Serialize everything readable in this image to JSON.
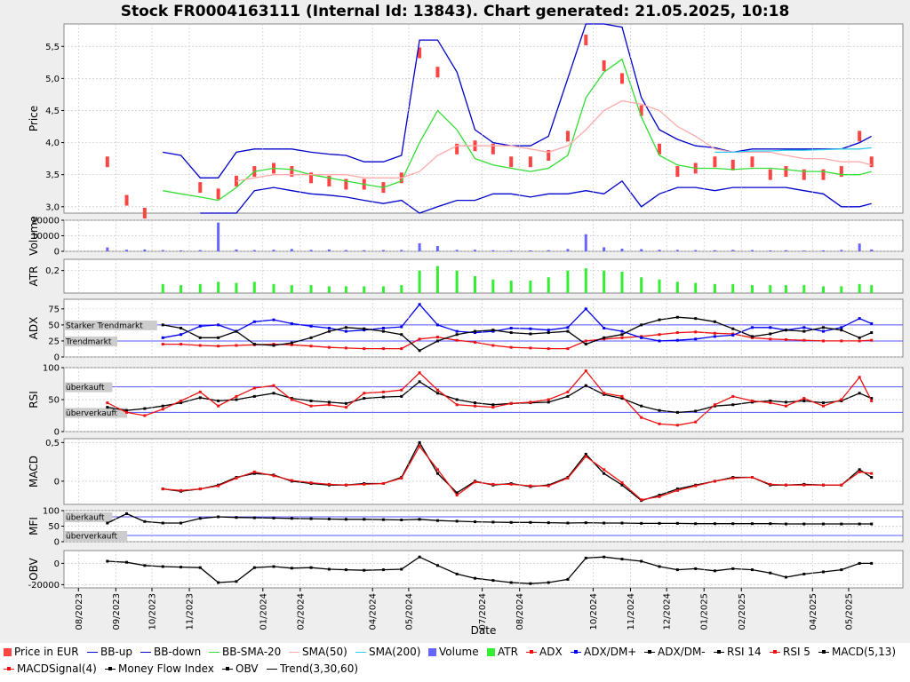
{
  "title": "Stock FR0004163111 (Internal Id: 13843). Chart generated: 21.05.2025, 10:18",
  "xlabel": "Date",
  "xticks": [
    "08/2023",
    "09/2023",
    "10/2023",
    "11/2023",
    "01/2024",
    "02/2024",
    "04/2024",
    "05/2024",
    "07/2024",
    "08/2024",
    "10/2024",
    "11/2024",
    "12/2024",
    "01/2025",
    "02/2025",
    "04/2025",
    "05/2025"
  ],
  "colors": {
    "price": "#ff4444",
    "bb_up": "#0000cc",
    "bb_down": "#0000cc",
    "bb_sma": "#33dd33",
    "sma50": "#ffaaaa",
    "sma200": "#33ccee",
    "volume": "#6666ff",
    "atr": "#33ee33",
    "adx": "#ee1111",
    "dmplus": "#0000ee",
    "dmminus": "#000000",
    "rsi14": "#000000",
    "rsi5": "#ee1111",
    "macd": "#000000",
    "macdsignal": "#ee1111",
    "mfi": "#000000",
    "obv": "#000000",
    "zone_line": "#5555ff",
    "zone_label_bg": "#cccccc"
  },
  "panels": [
    {
      "id": "price",
      "ylabel": "Price",
      "yticks": [
        "3,0",
        "3,5",
        "4,0",
        "4,5",
        "5,0",
        "5,5"
      ],
      "ylim": [
        2.9,
        5.85
      ]
    },
    {
      "id": "volume",
      "ylabel": "Volume",
      "yticks": [
        "0",
        "10000",
        "20000"
      ],
      "ylim": [
        0,
        20000
      ]
    },
    {
      "id": "atr",
      "ylabel": "ATR",
      "yticks": [
        "0,2"
      ],
      "ylim": [
        0,
        0.3
      ]
    },
    {
      "id": "adx",
      "ylabel": "ADX",
      "yticks": [
        "0",
        "25",
        "50",
        "75"
      ],
      "ylim": [
        0,
        90
      ],
      "zones": [
        {
          "label": "Starker Trendmarkt",
          "value": 50
        },
        {
          "label": "Trendmarkt",
          "value": 25
        }
      ]
    },
    {
      "id": "rsi",
      "ylabel": "RSI",
      "yticks": [
        "0",
        "50",
        "100"
      ],
      "ylim": [
        0,
        100
      ],
      "zones": [
        {
          "label": "überkauft",
          "value": 70
        },
        {
          "label": "überverkauft",
          "value": 30
        }
      ]
    },
    {
      "id": "macd",
      "ylabel": "MACD",
      "yticks": [
        "0",
        "0,5"
      ],
      "ylim": [
        -0.3,
        0.55
      ]
    },
    {
      "id": "mfi",
      "ylabel": "MFI",
      "yticks": [
        "0",
        "50",
        "100"
      ],
      "ylim": [
        0,
        100
      ],
      "zones": [
        {
          "label": "überkauft",
          "value": 80
        },
        {
          "label": "überverkauft",
          "value": 20
        }
      ]
    },
    {
      "id": "obv",
      "ylabel": "OBV",
      "yticks": [
        "0",
        "-20000"
      ],
      "ylim": [
        -23000,
        12000
      ]
    }
  ],
  "legend": [
    {
      "label": "Price in EUR",
      "swatch": "box",
      "color": "#ff4444"
    },
    {
      "label": "BB-up",
      "swatch": "line",
      "color": "#0000cc"
    },
    {
      "label": "BB-down",
      "swatch": "line",
      "color": "#0000cc"
    },
    {
      "label": "BB-SMA-20",
      "swatch": "line",
      "color": "#33dd33"
    },
    {
      "label": "SMA(50)",
      "swatch": "line",
      "color": "#ffaaaa"
    },
    {
      "label": "SMA(200)",
      "swatch": "line",
      "color": "#33ccee"
    },
    {
      "label": "Volume",
      "swatch": "box",
      "color": "#6666ff"
    },
    {
      "label": "ATR",
      "swatch": "box",
      "color": "#33ee33"
    },
    {
      "label": "ADX",
      "swatch": "marked",
      "color": "#ee1111"
    },
    {
      "label": "ADX/DM+",
      "swatch": "marked",
      "color": "#0000ee"
    },
    {
      "label": "ADX/DM-",
      "swatch": "marked",
      "color": "#000000"
    },
    {
      "label": "RSI 14",
      "swatch": "marked",
      "color": "#000000"
    },
    {
      "label": "RSI 5",
      "swatch": "marked",
      "color": "#ee1111"
    },
    {
      "label": "MACD(5,13)",
      "swatch": "marked",
      "color": "#000000"
    },
    {
      "label": "MACDSignal(4)",
      "swatch": "marked",
      "color": "#ee1111"
    },
    {
      "label": "Money Flow Index",
      "swatch": "marked",
      "color": "#000000"
    },
    {
      "label": "OBV",
      "swatch": "marked",
      "color": "#000000"
    },
    {
      "label": "Trend(3,30,60)",
      "swatch": "line",
      "color": "#000000"
    }
  ],
  "chart_data": {
    "type": "line",
    "title": "Stock FR0004163111 (Internal Id: 13843). Chart generated: 21.05.2025, 10:18",
    "xlabel": "Date",
    "x": [
      "2023-08-01",
      "2023-08-25",
      "2023-09-10",
      "2023-09-25",
      "2023-10-10",
      "2023-10-25",
      "2023-11-10",
      "2023-11-25",
      "2023-12-10",
      "2023-12-25",
      "2024-01-10",
      "2024-01-25",
      "2024-02-10",
      "2024-02-25",
      "2024-03-10",
      "2024-03-25",
      "2024-04-10",
      "2024-04-25",
      "2024-05-10",
      "2024-05-25",
      "2024-06-10",
      "2024-06-25",
      "2024-07-10",
      "2024-07-25",
      "2024-08-10",
      "2024-08-25",
      "2024-09-10",
      "2024-09-25",
      "2024-10-10",
      "2024-10-25",
      "2024-11-10",
      "2024-11-25",
      "2024-12-10",
      "2024-12-25",
      "2025-01-10",
      "2025-01-25",
      "2025-02-10",
      "2025-02-25",
      "2025-03-10",
      "2025-03-25",
      "2025-04-10",
      "2025-04-25",
      "2025-05-10",
      "2025-05-20"
    ],
    "series": [
      {
        "name": "Price in EUR",
        "panel": "price",
        "values": [
          null,
          3.7,
          3.1,
          2.9,
          null,
          null,
          3.3,
          3.2,
          3.4,
          3.55,
          3.6,
          3.55,
          3.45,
          3.4,
          3.35,
          3.35,
          3.3,
          3.45,
          5.4,
          5.1,
          3.9,
          3.95,
          3.9,
          3.7,
          3.7,
          3.8,
          4.1,
          5.6,
          5.2,
          5.0,
          4.5,
          3.9,
          3.55,
          3.6,
          3.7,
          3.65,
          3.7,
          3.5,
          3.55,
          3.5,
          3.5,
          3.55,
          4.1,
          3.7
        ]
      },
      {
        "name": "BB-up",
        "panel": "price",
        "values": [
          null,
          null,
          null,
          null,
          3.85,
          3.8,
          3.45,
          3.45,
          3.85,
          3.9,
          3.9,
          3.9,
          3.85,
          3.82,
          3.8,
          3.7,
          3.7,
          3.8,
          5.6,
          5.6,
          5.1,
          4.2,
          4.0,
          3.95,
          3.95,
          4.1,
          5.0,
          5.85,
          5.9,
          5.8,
          4.7,
          4.2,
          4.05,
          3.95,
          3.92,
          3.85,
          3.9,
          3.9,
          3.9,
          3.9,
          3.9,
          3.9,
          4.0,
          4.1
        ]
      },
      {
        "name": "BB-down",
        "panel": "price",
        "values": [
          null,
          null,
          null,
          null,
          null,
          null,
          2.8,
          2.8,
          2.8,
          3.25,
          3.3,
          3.25,
          3.2,
          3.18,
          3.15,
          3.1,
          3.05,
          3.1,
          2.8,
          3.0,
          3.1,
          3.1,
          3.2,
          3.2,
          3.15,
          3.2,
          3.2,
          3.25,
          3.2,
          3.4,
          3.0,
          3.2,
          3.3,
          3.3,
          3.25,
          3.3,
          3.3,
          3.3,
          3.3,
          3.25,
          3.2,
          3.0,
          3.0,
          3.05
        ]
      },
      {
        "name": "BB-SMA-20",
        "panel": "price",
        "values": [
          null,
          null,
          null,
          null,
          3.25,
          3.2,
          3.15,
          3.1,
          3.3,
          3.55,
          3.6,
          3.58,
          3.5,
          3.45,
          3.4,
          3.35,
          3.3,
          3.4,
          4.0,
          4.5,
          4.2,
          3.75,
          3.65,
          3.6,
          3.55,
          3.6,
          3.8,
          4.7,
          5.1,
          5.3,
          4.4,
          3.8,
          3.65,
          3.6,
          3.6,
          3.58,
          3.6,
          3.6,
          3.58,
          3.55,
          3.55,
          3.5,
          3.5,
          3.55
        ]
      },
      {
        "name": "SMA(50)",
        "panel": "price",
        "values": [
          null,
          null,
          null,
          null,
          null,
          null,
          null,
          null,
          3.4,
          3.45,
          3.5,
          3.5,
          3.5,
          3.5,
          3.5,
          3.45,
          3.45,
          3.45,
          3.55,
          3.8,
          3.95,
          3.95,
          3.95,
          3.95,
          3.9,
          3.85,
          3.95,
          4.2,
          4.5,
          4.65,
          4.6,
          4.5,
          4.25,
          4.1,
          3.9,
          3.85,
          3.85,
          3.85,
          3.8,
          3.75,
          3.75,
          3.7,
          3.7,
          3.65
        ]
      },
      {
        "name": "SMA(200)",
        "panel": "price",
        "values": [
          null,
          null,
          null,
          null,
          null,
          null,
          null,
          null,
          null,
          null,
          null,
          null,
          null,
          null,
          null,
          null,
          null,
          null,
          null,
          null,
          null,
          null,
          null,
          null,
          null,
          null,
          null,
          null,
          null,
          null,
          null,
          null,
          null,
          null,
          3.85,
          3.85,
          3.87,
          3.87,
          3.88,
          3.88,
          3.89,
          3.9,
          3.9,
          3.92
        ]
      },
      {
        "name": "Volume",
        "panel": "volume",
        "values": [
          0,
          2500,
          1000,
          1200,
          800,
          600,
          800,
          18500,
          1200,
          800,
          1000,
          1500,
          900,
          1200,
          800,
          700,
          800,
          900,
          5200,
          3400,
          900,
          1000,
          700,
          500,
          600,
          700,
          1500,
          11000,
          2600,
          1700,
          1400,
          1000,
          900,
          800,
          700,
          900,
          800,
          600,
          700,
          500,
          600,
          900,
          5000,
          1200
        ]
      },
      {
        "name": "ATR",
        "panel": "atr",
        "values": [
          null,
          null,
          null,
          null,
          0.08,
          0.07,
          0.08,
          0.1,
          0.09,
          0.1,
          0.08,
          0.07,
          0.07,
          0.06,
          0.06,
          0.06,
          0.06,
          0.07,
          0.2,
          0.24,
          0.2,
          0.15,
          0.12,
          0.11,
          0.11,
          0.14,
          0.2,
          0.22,
          0.2,
          0.19,
          0.14,
          0.12,
          0.1,
          0.09,
          0.08,
          0.08,
          0.07,
          0.07,
          0.07,
          0.07,
          0.06,
          0.06,
          0.08,
          0.07
        ]
      },
      {
        "name": "ADX",
        "panel": "adx",
        "values": [
          null,
          null,
          null,
          null,
          20,
          20,
          18,
          17,
          18,
          19,
          20,
          19,
          17,
          15,
          14,
          13,
          13,
          13,
          28,
          31,
          26,
          23,
          18,
          15,
          14,
          13,
          13,
          25,
          28,
          30,
          32,
          35,
          38,
          39,
          37,
          36,
          30,
          28,
          27,
          26,
          25,
          25,
          25,
          26
        ]
      },
      {
        "name": "ADX/DM+",
        "panel": "adx",
        "values": [
          null,
          null,
          null,
          null,
          30,
          35,
          48,
          50,
          40,
          55,
          58,
          52,
          48,
          45,
          40,
          42,
          45,
          47,
          82,
          50,
          40,
          38,
          40,
          45,
          44,
          42,
          46,
          75,
          45,
          40,
          30,
          25,
          26,
          28,
          32,
          34,
          46,
          46,
          42,
          46,
          40,
          46,
          60,
          52
        ]
      },
      {
        "name": "ADX/DM-",
        "panel": "adx",
        "values": [
          null,
          null,
          null,
          null,
          50,
          45,
          30,
          30,
          40,
          20,
          18,
          22,
          30,
          40,
          46,
          44,
          40,
          35,
          10,
          25,
          35,
          40,
          42,
          38,
          36,
          38,
          40,
          20,
          30,
          35,
          50,
          58,
          62,
          60,
          55,
          44,
          32,
          36,
          42,
          40,
          46,
          42,
          30,
          38
        ]
      },
      {
        "name": "RSI 14",
        "panel": "rsi",
        "values": [
          null,
          38,
          33,
          36,
          40,
          45,
          53,
          48,
          50,
          55,
          60,
          52,
          48,
          46,
          44,
          52,
          54,
          55,
          78,
          60,
          50,
          45,
          42,
          44,
          45,
          46,
          55,
          72,
          58,
          52,
          40,
          33,
          30,
          32,
          40,
          42,
          46,
          48,
          46,
          48,
          45,
          48,
          60,
          52
        ]
      },
      {
        "name": "RSI 5",
        "panel": "rsi",
        "values": [
          null,
          45,
          30,
          25,
          35,
          48,
          62,
          40,
          55,
          68,
          72,
          50,
          40,
          42,
          38,
          60,
          62,
          65,
          92,
          65,
          42,
          40,
          38,
          44,
          46,
          50,
          62,
          95,
          60,
          55,
          22,
          12,
          10,
          15,
          42,
          55,
          48,
          45,
          40,
          52,
          40,
          50,
          85,
          48
        ]
      },
      {
        "name": "MACD(5,13)",
        "panel": "macd",
        "values": [
          null,
          null,
          null,
          null,
          -0.1,
          -0.13,
          -0.1,
          -0.05,
          0.05,
          0.1,
          0.08,
          0.0,
          -0.03,
          -0.05,
          -0.05,
          -0.03,
          -0.03,
          0.05,
          0.5,
          0.1,
          -0.15,
          0.0,
          -0.05,
          -0.03,
          -0.07,
          -0.05,
          0.05,
          0.35,
          0.1,
          -0.05,
          -0.25,
          -0.18,
          -0.1,
          -0.05,
          0.0,
          0.05,
          0.05,
          -0.05,
          -0.05,
          -0.04,
          -0.05,
          -0.05,
          0.15,
          0.05
        ]
      },
      {
        "name": "MACDSignal(4)",
        "panel": "macd",
        "values": [
          null,
          null,
          null,
          null,
          -0.1,
          -0.12,
          -0.1,
          -0.06,
          0.04,
          0.12,
          0.07,
          0.01,
          -0.02,
          -0.04,
          -0.05,
          -0.04,
          -0.03,
          0.04,
          0.45,
          0.15,
          -0.18,
          -0.01,
          -0.04,
          -0.04,
          -0.06,
          -0.06,
          0.04,
          0.32,
          0.15,
          -0.02,
          -0.24,
          -0.2,
          -0.12,
          -0.06,
          0.0,
          0.04,
          0.05,
          -0.04,
          -0.05,
          -0.05,
          -0.05,
          -0.05,
          0.12,
          0.1
        ]
      },
      {
        "name": "Money Flow Index",
        "panel": "mfi",
        "values": [
          null,
          60,
          90,
          65,
          60,
          60,
          75,
          80,
          78,
          77,
          76,
          75,
          74,
          73,
          72,
          72,
          71,
          70,
          72,
          68,
          66,
          64,
          63,
          62,
          62,
          61,
          60,
          61,
          60,
          60,
          59,
          59,
          59,
          58,
          58,
          58,
          58,
          58,
          57,
          57,
          57,
          57,
          57,
          57
        ]
      },
      {
        "name": "OBV",
        "panel": "obv",
        "values": [
          null,
          2000,
          1000,
          -2000,
          -3000,
          -3500,
          -4000,
          -18000,
          -17000,
          -4000,
          -3000,
          -4500,
          -4000,
          -5500,
          -6000,
          -6500,
          -6000,
          -5500,
          6000,
          -2000,
          -10000,
          -14000,
          -16000,
          -18000,
          -19000,
          -18000,
          -15000,
          5000,
          6000,
          4000,
          2000,
          -3000,
          -6000,
          -5000,
          -7000,
          -5000,
          -6000,
          -9000,
          -13000,
          -10000,
          -8000,
          -6000,
          0,
          0
        ]
      }
    ]
  }
}
